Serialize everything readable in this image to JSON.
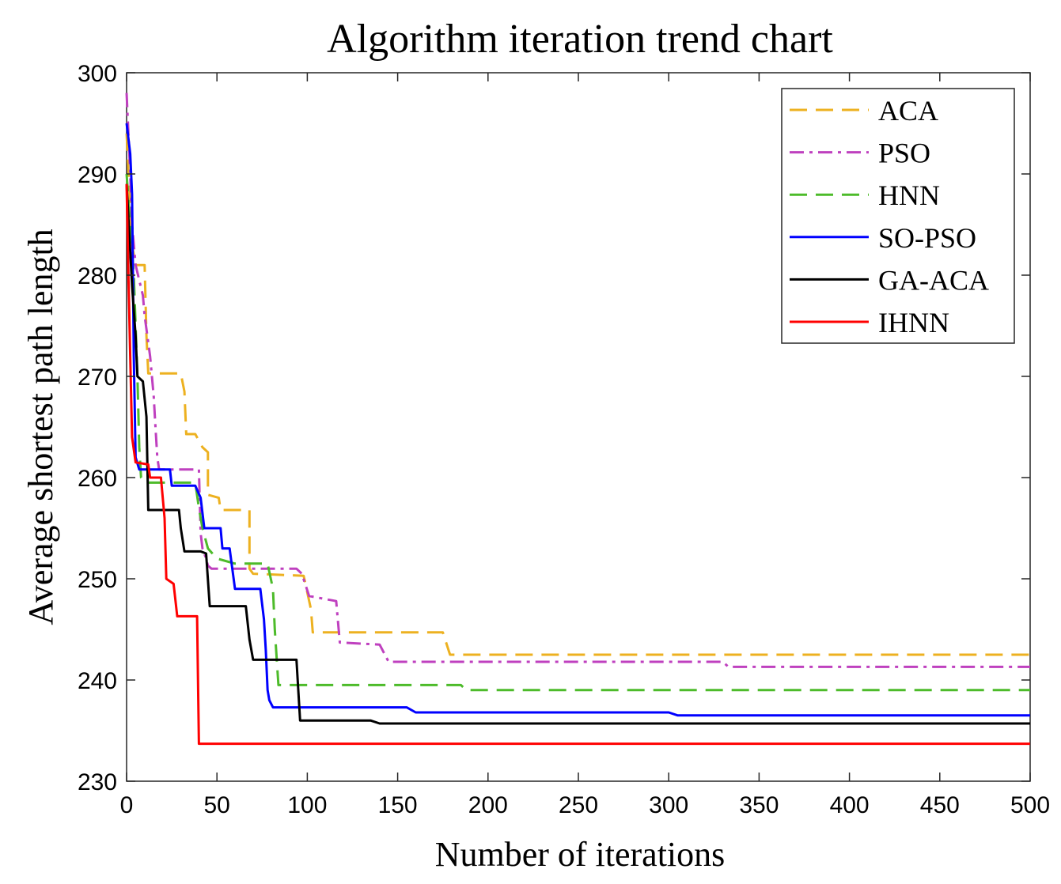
{
  "chart_data": {
    "type": "line",
    "title": "Algorithm iteration trend chart",
    "xlabel": "Number of iterations",
    "ylabel": "Average shortest path length",
    "xlim": [
      0,
      500
    ],
    "ylim": [
      230,
      300
    ],
    "xticks": [
      0,
      50,
      100,
      150,
      200,
      250,
      300,
      350,
      400,
      450,
      500
    ],
    "yticks": [
      230,
      240,
      250,
      260,
      270,
      280,
      290,
      300
    ],
    "grid": false,
    "legend_position": "top-right",
    "series": [
      {
        "name": "ACA",
        "color": "#EDB120",
        "dash": "dashed",
        "points": [
          [
            0,
            294
          ],
          [
            3,
            283
          ],
          [
            5,
            281
          ],
          [
            10,
            281
          ],
          [
            11,
            274
          ],
          [
            12,
            270.3
          ],
          [
            30,
            270.3
          ],
          [
            32,
            268.5
          ],
          [
            33,
            264.3
          ],
          [
            38,
            264.3
          ],
          [
            42,
            263
          ],
          [
            45,
            262.5
          ],
          [
            45,
            258.3
          ],
          [
            51,
            258
          ],
          [
            52,
            256.8
          ],
          [
            64,
            256.8
          ],
          [
            68,
            256.8
          ],
          [
            68,
            251
          ],
          [
            70,
            250.5
          ],
          [
            98,
            250.3
          ],
          [
            102,
            247
          ],
          [
            103,
            244.7
          ],
          [
            175,
            244.7
          ],
          [
            179,
            242.5
          ],
          [
            500,
            242.5
          ]
        ]
      },
      {
        "name": "PSO",
        "color": "#BF40BF",
        "dash": "dashdot",
        "points": [
          [
            0,
            298
          ],
          [
            2,
            290
          ],
          [
            3,
            285
          ],
          [
            5,
            281
          ],
          [
            9,
            278
          ],
          [
            10,
            276
          ],
          [
            13,
            272
          ],
          [
            15,
            268
          ],
          [
            16,
            265
          ],
          [
            17,
            262
          ],
          [
            18,
            260.8
          ],
          [
            40,
            260.8
          ],
          [
            41,
            254.5
          ],
          [
            42,
            253
          ],
          [
            44,
            252
          ],
          [
            45,
            251.3
          ],
          [
            47,
            251
          ],
          [
            94,
            251
          ],
          [
            97,
            250.5
          ],
          [
            101,
            248.3
          ],
          [
            116,
            247.8
          ],
          [
            118,
            243.7
          ],
          [
            140,
            243.5
          ],
          [
            145,
            241.8
          ],
          [
            330,
            241.8
          ],
          [
            333,
            241.3
          ],
          [
            500,
            241.3
          ]
        ]
      },
      {
        "name": "HNN",
        "color": "#4DBB2A",
        "dash": "dashed",
        "points": [
          [
            0,
            290
          ],
          [
            4,
            280
          ],
          [
            6,
            270
          ],
          [
            7,
            263
          ],
          [
            8,
            260
          ],
          [
            10,
            259.5
          ],
          [
            38,
            259.5
          ],
          [
            40,
            257
          ],
          [
            42,
            255
          ],
          [
            45,
            253
          ],
          [
            50,
            252
          ],
          [
            60,
            251.5
          ],
          [
            78,
            251.5
          ],
          [
            81,
            249
          ],
          [
            82,
            245
          ],
          [
            84,
            239.5
          ],
          [
            185,
            239.5
          ],
          [
            188,
            239
          ],
          [
            500,
            239
          ]
        ]
      },
      {
        "name": "SO-PSO",
        "color": "#0000FF",
        "dash": "solid",
        "points": [
          [
            0,
            295
          ],
          [
            2,
            292
          ],
          [
            3,
            288
          ],
          [
            4,
            272
          ],
          [
            5,
            262
          ],
          [
            7,
            260.8
          ],
          [
            24,
            260.8
          ],
          [
            25,
            259.2
          ],
          [
            38,
            259.2
          ],
          [
            41,
            258
          ],
          [
            43,
            255
          ],
          [
            52,
            255
          ],
          [
            53,
            253
          ],
          [
            57,
            253
          ],
          [
            60,
            249
          ],
          [
            74,
            249
          ],
          [
            76,
            246
          ],
          [
            77,
            243
          ],
          [
            78,
            239
          ],
          [
            79,
            238
          ],
          [
            81,
            237.3
          ],
          [
            155,
            237.3
          ],
          [
            160,
            236.8
          ],
          [
            300,
            236.8
          ],
          [
            305,
            236.5
          ],
          [
            500,
            236.5
          ]
        ]
      },
      {
        "name": "GA-ACA",
        "color": "#000000",
        "dash": "solid",
        "points": [
          [
            0,
            289
          ],
          [
            3,
            279
          ],
          [
            5,
            274
          ],
          [
            6,
            270
          ],
          [
            9,
            269.5
          ],
          [
            11,
            266
          ],
          [
            12,
            256.8
          ],
          [
            29,
            256.8
          ],
          [
            30,
            255
          ],
          [
            32,
            252.7
          ],
          [
            41,
            252.7
          ],
          [
            44,
            252.5
          ],
          [
            46,
            247.3
          ],
          [
            66,
            247.3
          ],
          [
            68,
            244
          ],
          [
            70,
            242
          ],
          [
            94,
            242
          ],
          [
            96,
            236
          ],
          [
            135,
            236
          ],
          [
            140,
            235.7
          ],
          [
            500,
            235.7
          ]
        ]
      },
      {
        "name": "IHNN",
        "color": "#FF0000",
        "dash": "solid",
        "points": [
          [
            0,
            289
          ],
          [
            1,
            280
          ],
          [
            2,
            272
          ],
          [
            3,
            264
          ],
          [
            5,
            261.5
          ],
          [
            12,
            261.3
          ],
          [
            13,
            260
          ],
          [
            19,
            260
          ],
          [
            21,
            256
          ],
          [
            22,
            250
          ],
          [
            26,
            249.5
          ],
          [
            28,
            246.3
          ],
          [
            39,
            246.3
          ],
          [
            40,
            233.7
          ],
          [
            500,
            233.7
          ]
        ]
      }
    ]
  }
}
